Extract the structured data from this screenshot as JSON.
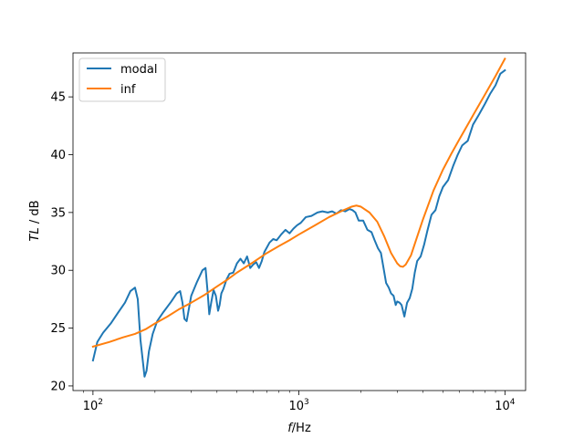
{
  "chart_data": {
    "type": "line",
    "title": "",
    "xlabel": {
      "italic": "f",
      "rest": "/Hz"
    },
    "ylabel": {
      "italic": "TL",
      "rest": " / dB"
    },
    "xscale": "log",
    "xlim": [
      80,
      12600
    ],
    "ylim": [
      19.6,
      48.8
    ],
    "xticks": [
      {
        "value": 100,
        "base": "10",
        "exp": "2"
      },
      {
        "value": 1000,
        "base": "10",
        "exp": "3"
      },
      {
        "value": 10000,
        "base": "10",
        "exp": "4"
      }
    ],
    "yticks": [
      20,
      25,
      30,
      35,
      40,
      45
    ],
    "grid": false,
    "legend_position": "top-left",
    "colors": {
      "modal": "#1f77b4",
      "inf": "#ff7f0e"
    },
    "series": [
      {
        "name": "modal",
        "x": [
          100,
          105,
          112,
          122,
          132,
          143,
          152,
          160,
          165,
          170,
          175,
          178,
          182,
          187,
          195,
          205,
          220,
          240,
          255,
          265,
          272,
          278,
          285,
          300,
          320,
          340,
          352,
          360,
          367,
          375,
          385,
          395,
          405,
          412,
          420,
          430,
          445,
          460,
          480,
          500,
          520,
          540,
          560,
          580,
          600,
          620,
          640,
          660,
          680,
          700,
          720,
          750,
          780,
          820,
          860,
          900,
          940,
          980,
          1020,
          1080,
          1150,
          1230,
          1300,
          1380,
          1450,
          1520,
          1600,
          1680,
          1760,
          1820,
          1880,
          1950,
          2050,
          2150,
          2250,
          2330,
          2420,
          2500,
          2580,
          2650,
          2730,
          2800,
          2880,
          2950,
          3000,
          3080,
          3150,
          3250,
          3350,
          3450,
          3550,
          3650,
          3750,
          3900,
          4050,
          4200,
          4400,
          4600,
          4800,
          5000,
          5300,
          5600,
          5900,
          6200,
          6600,
          7000,
          7500,
          8000,
          8500,
          9000,
          9500,
          10000
        ],
        "y": [
          22.2,
          23.8,
          24.6,
          25.4,
          26.3,
          27.2,
          28.2,
          28.5,
          27.5,
          24.0,
          22.0,
          20.8,
          21.3,
          23.0,
          24.5,
          25.6,
          26.4,
          27.3,
          28.0,
          28.2,
          27.2,
          25.8,
          25.6,
          27.8,
          29.0,
          30.0,
          30.2,
          28.2,
          26.2,
          27.2,
          28.3,
          27.8,
          26.5,
          27.0,
          28.0,
          28.4,
          29.2,
          29.7,
          29.8,
          30.6,
          31.0,
          30.6,
          31.2,
          30.2,
          30.5,
          30.7,
          30.2,
          30.8,
          31.6,
          32.0,
          32.4,
          32.7,
          32.6,
          33.1,
          33.5,
          33.2,
          33.6,
          33.9,
          34.1,
          34.6,
          34.7,
          35.0,
          35.1,
          35.0,
          35.1,
          34.9,
          35.2,
          35.1,
          35.3,
          35.2,
          35.0,
          34.3,
          34.3,
          33.5,
          33.3,
          32.6,
          31.9,
          31.5,
          30.1,
          28.9,
          28.5,
          28.0,
          27.8,
          27.0,
          27.3,
          27.2,
          27.0,
          26.0,
          27.2,
          27.6,
          28.4,
          29.8,
          30.8,
          31.2,
          32.2,
          33.4,
          34.8,
          35.2,
          36.4,
          37.2,
          37.8,
          39.0,
          40.0,
          40.8,
          41.2,
          42.6,
          43.5,
          44.4,
          45.3,
          46.0,
          47.0,
          47.3
        ]
      },
      {
        "name": "inf",
        "x": [
          100,
          120,
          140,
          160,
          180,
          200,
          230,
          260,
          300,
          350,
          400,
          450,
          500,
          600,
          700,
          800,
          900,
          1000,
          1200,
          1400,
          1600,
          1800,
          1900,
          2000,
          2200,
          2400,
          2600,
          2800,
          3000,
          3100,
          3200,
          3300,
          3500,
          3700,
          4000,
          4500,
          5000,
          5500,
          6000,
          7000,
          8000,
          9000,
          10000
        ],
        "y": [
          23.4,
          23.8,
          24.2,
          24.5,
          24.9,
          25.4,
          26.0,
          26.6,
          27.2,
          27.9,
          28.6,
          29.2,
          29.8,
          30.7,
          31.5,
          32.1,
          32.6,
          33.1,
          33.9,
          34.6,
          35.1,
          35.5,
          35.6,
          35.5,
          35.0,
          34.2,
          32.9,
          31.5,
          30.6,
          30.35,
          30.3,
          30.5,
          31.3,
          32.6,
          34.4,
          36.9,
          38.7,
          40.1,
          41.3,
          43.4,
          45.2,
          46.8,
          48.3
        ]
      }
    ]
  }
}
